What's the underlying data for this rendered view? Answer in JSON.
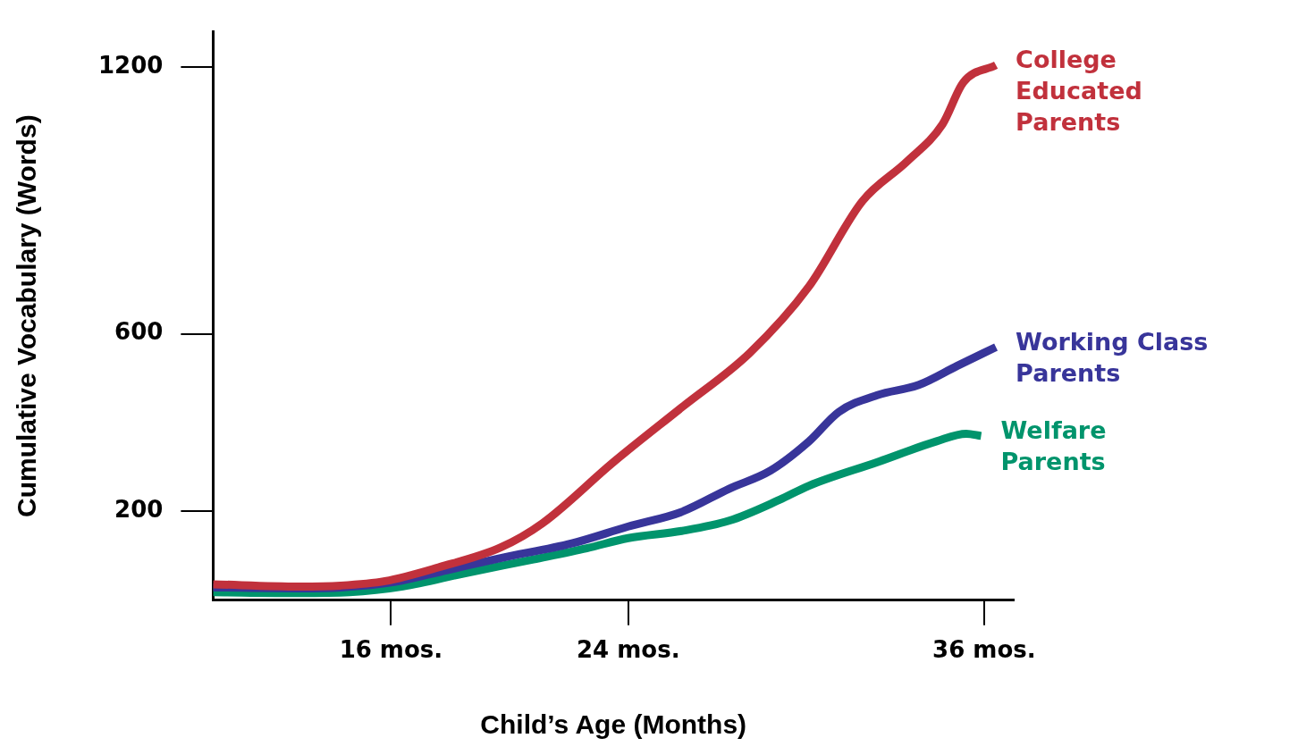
{
  "chart_data": {
    "type": "line",
    "xlabel": "Child’s Age (Months)",
    "ylabel": "Cumulative Vocabulary (Words)",
    "xlim": [
      10,
      37
    ],
    "xticks": [
      {
        "value": 16,
        "label": "16 mos."
      },
      {
        "value": 24,
        "label": "24 mos."
      },
      {
        "value": 36,
        "label": "36 mos."
      }
    ],
    "ylim": [
      0,
      1280
    ],
    "yticks": [
      200,
      600,
      1200
    ],
    "grid": false,
    "legend": false,
    "marker": "none",
    "line_style": "solid",
    "series": [
      {
        "name": "College Educated Parents",
        "color": "#c1313c",
        "x": [
          10,
          12.9,
          14.3,
          15.8,
          17.6,
          19.7,
          21.1,
          23.5,
          25.8,
          28.1,
          30.1,
          31.9,
          33.4,
          34.6,
          35.3,
          36.4
        ],
        "values": [
          36,
          31,
          33,
          43,
          74,
          119,
          173,
          311,
          434,
          557,
          707,
          899,
          988,
          1072,
          1166,
          1205
        ]
      },
      {
        "name": "Working Class Parents",
        "color": "#38359a",
        "x": [
          10,
          12.9,
          14.3,
          16.1,
          17.9,
          19.7,
          22.1,
          24,
          25.8,
          27.4,
          28.8,
          30.1,
          31.1,
          32.4,
          33.8,
          35.1,
          36.4
        ],
        "values": [
          29,
          27,
          29,
          41,
          68,
          95,
          128,
          166,
          199,
          251,
          292,
          358,
          424,
          462,
          485,
          528,
          570
        ]
      },
      {
        "name": "Welfare Parents",
        "color": "#00946c",
        "x": [
          10,
          12.9,
          14.6,
          16.4,
          18.5,
          20.8,
          22.6,
          24,
          25.8,
          27.4,
          29.1,
          30.1,
          32.4,
          34.4,
          35.4,
          35.9
        ],
        "values": [
          18,
          16,
          18,
          31,
          61,
          92,
          117,
          140,
          156,
          179,
          226,
          258,
          311,
          358,
          375,
          370
        ]
      }
    ]
  }
}
